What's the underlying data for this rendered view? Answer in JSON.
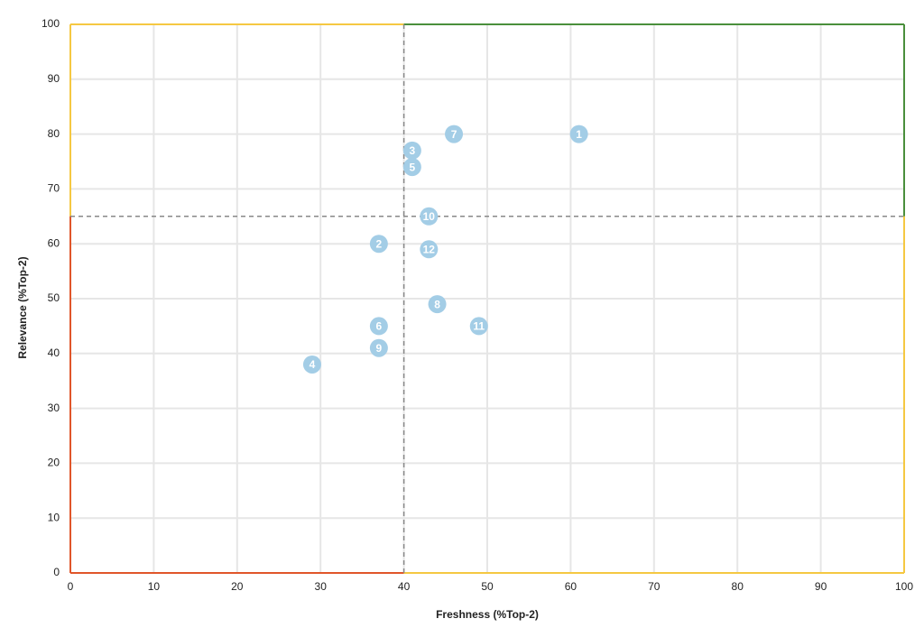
{
  "chart_data": {
    "type": "scatter",
    "x_label": "Freshness (%Top-2)",
    "y_label": "Relevance (%Top-2)",
    "x": [
      61,
      37,
      41,
      29,
      41,
      37,
      46,
      44,
      37,
      43,
      49,
      43
    ],
    "values": [
      80,
      60,
      77,
      38,
      74,
      45,
      80,
      49,
      41,
      65,
      45,
      59
    ],
    "point_labels": [
      "1",
      "2",
      "3",
      "4",
      "5",
      "6",
      "7",
      "8",
      "9",
      "10",
      "11",
      "12"
    ],
    "color": "#a3cde6",
    "xlim": [
      0,
      100
    ],
    "ylim": [
      0,
      100
    ],
    "xticks": [
      0,
      10,
      20,
      30,
      40,
      50,
      60,
      70,
      80,
      90,
      100
    ],
    "yticks": [
      0,
      10,
      20,
      30,
      40,
      50,
      60,
      70,
      80,
      90,
      100
    ],
    "grid": true,
    "x_threshold": 40,
    "y_threshold": 65,
    "quadrant_colors": {
      "top_left": "#f5c842",
      "top_right": "#4a8f3c",
      "bottom_left": "#e0562a",
      "bottom_right": "#f5c842"
    }
  }
}
